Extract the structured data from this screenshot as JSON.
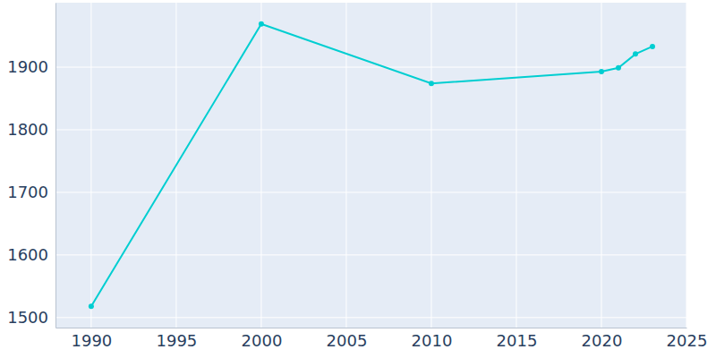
{
  "chart_data": {
    "type": "line",
    "x": [
      1990,
      2000,
      2010,
      2020,
      2021,
      2022,
      2023
    ],
    "values": [
      1518,
      1969,
      1874,
      1893,
      1899,
      1921,
      1933
    ],
    "color": "#00ced1",
    "marker": "circle",
    "xlim": [
      1987.9,
      2025
    ],
    "xticks": [
      1990,
      1995,
      2000,
      2005,
      2010,
      2015,
      2020,
      2025
    ],
    "ylim": [
      1484,
      2003
    ],
    "yticks": [
      1500,
      1600,
      1700,
      1800,
      1900
    ],
    "grid": true
  }
}
